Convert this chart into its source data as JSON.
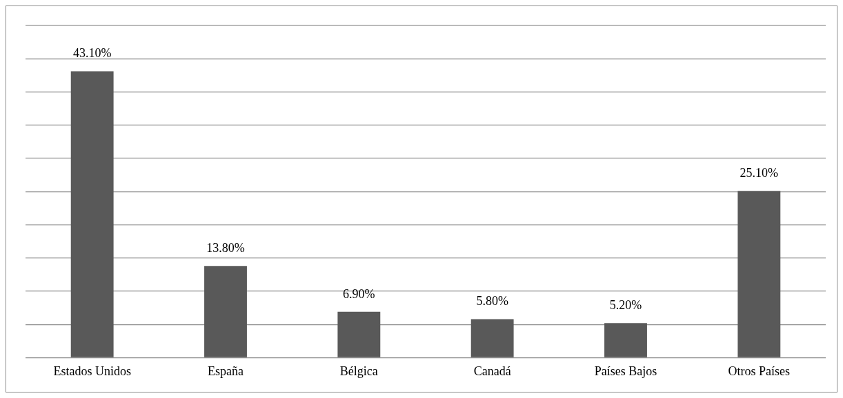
{
  "chart_data": {
    "type": "bar",
    "categories": [
      "Estados Unidos",
      "España",
      "Bélgica",
      "Canadá",
      "Países Bajos",
      "Otros Países"
    ],
    "values": [
      43.1,
      13.8,
      6.9,
      5.8,
      5.2,
      25.1
    ],
    "value_labels": [
      "43.10%",
      "13.80%",
      "6.90%",
      "5.80%",
      "5.20%",
      "25.10%"
    ],
    "color": "#595959",
    "ylim": [
      0,
      50
    ],
    "yticks": [
      {
        "value": 0,
        "label": null
      },
      {
        "value": 5,
        "label": null
      },
      {
        "value": 10,
        "label": null
      },
      {
        "value": 15,
        "label": null
      },
      {
        "value": 20,
        "label": null
      },
      {
        "value": 25,
        "label": null
      },
      {
        "value": 30,
        "label": null
      },
      {
        "value": 35,
        "label": null
      },
      {
        "value": 40,
        "label": null
      },
      {
        "value": 45,
        "label": null
      },
      {
        "value": 50,
        "label": null
      }
    ],
    "grid": "y",
    "legend": false,
    "tick_labels": "x"
  }
}
